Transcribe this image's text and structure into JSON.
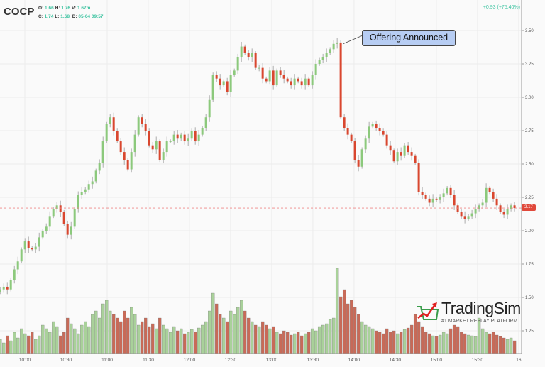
{
  "header": {
    "symbol": "COCP",
    "o_label": "O:",
    "o": "1.66",
    "h_label": "H:",
    "h": "1.76",
    "v_label": "V:",
    "v": "1.67m",
    "c_label": "C:",
    "c": "1.74",
    "l_label": "L:",
    "l": "1.68",
    "d_label": "D:",
    "d": "05-04 09:57",
    "change": "+0.93 (+75.40%)"
  },
  "annotation": "Offering Announced",
  "last_price_tag": "2.17",
  "logo": {
    "name": "TradingSim",
    "tagline": "#1 MARKET REPLAY PLATFORM"
  },
  "colors": {
    "up": "#8cc97c",
    "down": "#d9472f",
    "wick": "#999999",
    "vol_up": "#a9d19a",
    "vol_down": "#c86a58",
    "last_price": "#e0483a",
    "annotation": "#b7cdf3",
    "accent_text": "#3cc3a0"
  },
  "chart_data": {
    "type": "candlestick",
    "x_start": "09:42",
    "x_end": "15:57",
    "x_ticks": [
      "10:00",
      "10:30",
      "11:00",
      "11:30",
      "12:00",
      "12:30",
      "13:00",
      "13:30",
      "14:00",
      "14:30",
      "15:00",
      "15:30",
      "16"
    ],
    "y_ticks": [
      "3.50",
      "3.25",
      "3.00",
      "2.75",
      "2.50",
      "2.25",
      "2.00",
      "1.75",
      "1.50",
      "1.25"
    ],
    "ylim": [
      1.1,
      3.62
    ],
    "grid": true,
    "last_price": 2.17,
    "annotation_time": "13:52",
    "annotation_price": 3.4,
    "closes": [
      1.56,
      1.58,
      1.56,
      1.63,
      1.71,
      1.77,
      1.86,
      1.92,
      1.87,
      1.86,
      1.88,
      1.95,
      2.0,
      2.03,
      2.11,
      2.16,
      2.19,
      2.14,
      2.05,
      1.97,
      2.03,
      2.16,
      2.27,
      2.29,
      2.31,
      2.35,
      2.37,
      2.45,
      2.51,
      2.67,
      2.8,
      2.85,
      2.75,
      2.67,
      2.59,
      2.53,
      2.46,
      2.59,
      2.72,
      2.85,
      2.8,
      2.75,
      2.64,
      2.61,
      2.67,
      2.53,
      2.59,
      2.67,
      2.67,
      2.72,
      2.69,
      2.72,
      2.67,
      2.69,
      2.75,
      2.67,
      2.72,
      2.77,
      2.85,
      2.98,
      3.17,
      3.14,
      3.09,
      3.12,
      3.04,
      3.17,
      3.2,
      3.3,
      3.38,
      3.33,
      3.3,
      3.33,
      3.22,
      3.22,
      3.14,
      3.12,
      3.2,
      3.09,
      3.2,
      3.17,
      3.14,
      3.12,
      3.09,
      3.14,
      3.12,
      3.09,
      3.14,
      3.09,
      3.17,
      3.25,
      3.28,
      3.3,
      3.33,
      3.36,
      3.4,
      3.41,
      2.85,
      2.77,
      2.72,
      2.67,
      2.53,
      2.48,
      2.61,
      2.69,
      2.78,
      2.8,
      2.77,
      2.75,
      2.72,
      2.64,
      2.6,
      2.52,
      2.59,
      2.56,
      2.64,
      2.59,
      2.56,
      2.51,
      2.29,
      2.27,
      2.24,
      2.21,
      2.24,
      2.23,
      2.25,
      2.28,
      2.32,
      2.27,
      2.19,
      2.14,
      2.11,
      2.09,
      2.11,
      2.13,
      2.16,
      2.19,
      2.21,
      2.32,
      2.29,
      2.24,
      2.19,
      2.14,
      2.12,
      2.16,
      2.19,
      2.17
    ],
    "volume": [
      20,
      15,
      25,
      18,
      30,
      22,
      35,
      28,
      25,
      30,
      20,
      25,
      40,
      35,
      30,
      45,
      38,
      25,
      30,
      50,
      42,
      35,
      28,
      40,
      45,
      38,
      55,
      60,
      50,
      70,
      75,
      60,
      55,
      50,
      45,
      60,
      50,
      65,
      55,
      40,
      45,
      50,
      38,
      42,
      35,
      50,
      40,
      35,
      30,
      38,
      32,
      35,
      28,
      30,
      34,
      30,
      36,
      40,
      45,
      60,
      85,
      70,
      55,
      50,
      45,
      60,
      55,
      65,
      75,
      60,
      50,
      45,
      40,
      38,
      45,
      40,
      35,
      38,
      30,
      28,
      32,
      30,
      26,
      28,
      30,
      25,
      28,
      30,
      35,
      32,
      38,
      40,
      42,
      48,
      50,
      120,
      80,
      90,
      70,
      75,
      65,
      55,
      45,
      40,
      38,
      35,
      32,
      30,
      28,
      35,
      30,
      32,
      28,
      30,
      34,
      36,
      40,
      55,
      45,
      38,
      30,
      28,
      25,
      24,
      26,
      30,
      28,
      35,
      40,
      38,
      30,
      28,
      26,
      25,
      24,
      50,
      35,
      30,
      28,
      30,
      26,
      24,
      22,
      20,
      22,
      18
    ]
  }
}
